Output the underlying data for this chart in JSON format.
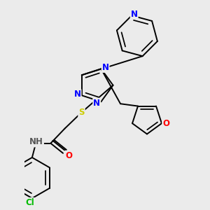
{
  "background_color": "#ebebeb",
  "atom_colors": {
    "N": "#0000FF",
    "O": "#FF0000",
    "S": "#CCCC00",
    "Cl": "#00BB00",
    "C": "#000000",
    "H": "#555555"
  },
  "bond_color": "#000000",
  "bond_width": 1.4,
  "font_size": 8.5,
  "xlim": [
    0.0,
    2.6
  ],
  "ylim": [
    -0.2,
    3.2
  ]
}
